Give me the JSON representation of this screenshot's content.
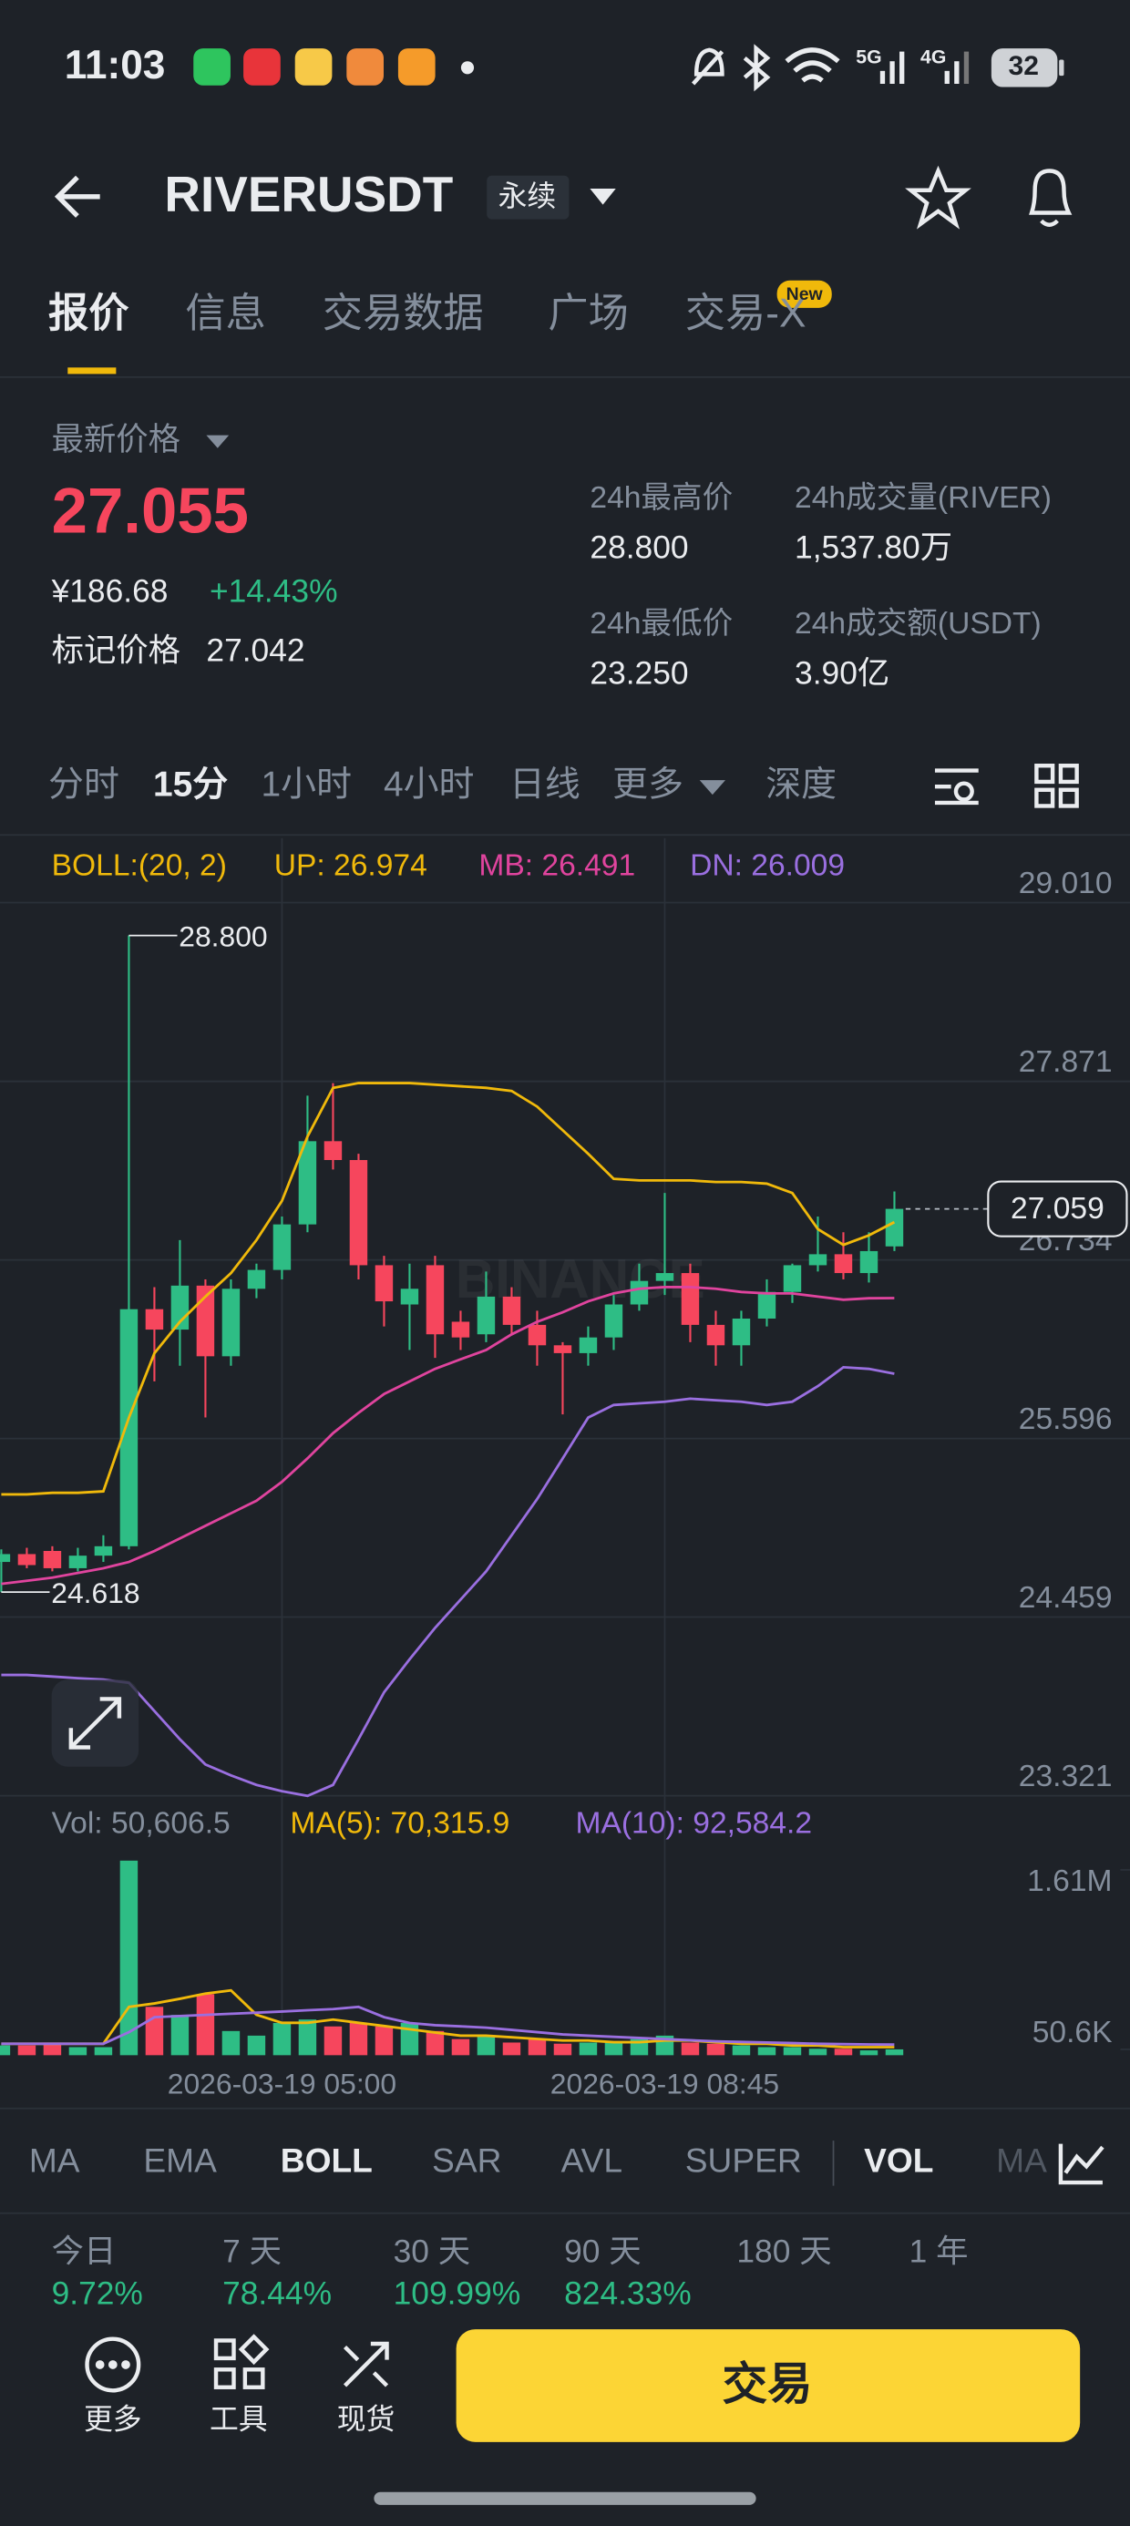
{
  "status_bar": {
    "time": "11:03",
    "network_1": "5G",
    "network_2": "4G",
    "battery": "32"
  },
  "header": {
    "symbol": "RIVERUSDT",
    "contract": "永续"
  },
  "tabs": {
    "items": [
      "报价",
      "信息",
      "交易数据",
      "广场",
      "交易-X"
    ],
    "badge": "New"
  },
  "price_panel": {
    "label": "最新价格",
    "last_price": "27.055",
    "cny": "¥186.68",
    "change": "+14.43%",
    "mark_label": "标记价格",
    "mark_price": "27.042",
    "stats": [
      {
        "label": "24h最高价",
        "value": "28.800"
      },
      {
        "label": "24h成交量(RIVER)",
        "value": "1,537.80万"
      },
      {
        "label": "24h最低价",
        "value": "23.250"
      },
      {
        "label": "24h成交额(USDT)",
        "value": "3.90亿"
      }
    ]
  },
  "intervals": [
    "分时",
    "15分",
    "1小时",
    "4小时",
    "日线",
    "更多",
    "深度"
  ],
  "chart_data": [
    {
      "type": "candlestick",
      "indicator": "BOLL:(20, 2)",
      "watermark": "BINANCE",
      "x": [
        null,
        null,
        null,
        null,
        null,
        null,
        null,
        null,
        null,
        null,
        null,
        "2026-03-19 05:00",
        null,
        null,
        null,
        null,
        null,
        null,
        null,
        null,
        null,
        null,
        null,
        null,
        null,
        null,
        "2026-03-19 08:45",
        null,
        null,
        null,
        null,
        null,
        null,
        null,
        null,
        null
      ],
      "ohlc": [
        [
          24.81,
          24.89,
          24.618,
          24.86
        ],
        [
          24.86,
          24.9,
          24.77,
          24.79
        ],
        [
          24.88,
          24.91,
          24.75,
          24.77
        ],
        [
          24.77,
          24.9,
          24.75,
          24.85
        ],
        [
          24.85,
          24.98,
          24.81,
          24.91
        ],
        [
          24.91,
          28.8,
          24.89,
          26.42
        ],
        [
          26.42,
          26.56,
          25.96,
          26.29
        ],
        [
          26.29,
          26.86,
          26.06,
          26.57
        ],
        [
          26.57,
          26.61,
          25.73,
          26.12
        ],
        [
          26.12,
          26.61,
          26.06,
          26.55
        ],
        [
          26.55,
          26.71,
          26.49,
          26.67
        ],
        [
          26.67,
          27.01,
          26.61,
          26.96
        ],
        [
          26.96,
          27.78,
          26.91,
          27.49
        ],
        [
          27.49,
          27.86,
          27.31,
          27.37
        ],
        [
          27.37,
          27.41,
          26.61,
          26.7
        ],
        [
          26.7,
          26.76,
          26.31,
          26.47
        ],
        [
          26.45,
          26.71,
          26.16,
          26.55
        ],
        [
          26.7,
          26.76,
          26.11,
          26.26
        ],
        [
          26.34,
          26.41,
          26.16,
          26.24
        ],
        [
          26.26,
          26.66,
          26.21,
          26.5
        ],
        [
          26.5,
          26.56,
          26.26,
          26.32
        ],
        [
          26.32,
          26.41,
          26.06,
          26.19
        ],
        [
          26.19,
          26.21,
          25.75,
          26.14
        ],
        [
          26.14,
          26.31,
          26.06,
          26.24
        ],
        [
          26.24,
          26.51,
          26.16,
          26.45
        ],
        [
          26.45,
          26.71,
          26.41,
          26.6
        ],
        [
          26.6,
          27.16,
          26.51,
          26.65
        ],
        [
          26.65,
          26.71,
          26.21,
          26.32
        ],
        [
          26.32,
          26.41,
          26.06,
          26.19
        ],
        [
          26.19,
          26.41,
          26.06,
          26.36
        ],
        [
          26.36,
          26.61,
          26.31,
          26.53
        ],
        [
          26.53,
          26.71,
          26.46,
          26.7
        ],
        [
          26.7,
          27.01,
          26.66,
          26.77
        ],
        [
          26.77,
          26.91,
          26.61,
          26.65
        ],
        [
          26.65,
          26.91,
          26.59,
          26.79
        ],
        [
          26.82,
          27.17,
          26.79,
          27.059
        ]
      ],
      "colors": {
        "up": "#2ebd85",
        "down": "#f6465d"
      },
      "series": [
        {
          "name": "UP",
          "legend_label": "UP: 26.974",
          "color": "#f0b90b",
          "values": [
            25.24,
            25.24,
            25.25,
            25.25,
            25.26,
            25.73,
            26.14,
            26.34,
            26.5,
            26.65,
            26.86,
            27.11,
            27.52,
            27.83,
            27.86,
            27.86,
            27.86,
            27.85,
            27.84,
            27.83,
            27.81,
            27.71,
            27.56,
            27.41,
            27.25,
            27.24,
            27.24,
            27.24,
            27.23,
            27.23,
            27.22,
            27.16,
            26.93,
            26.83,
            26.89,
            26.974
          ]
        },
        {
          "name": "MB",
          "legend_label": "MB: 26.491",
          "color": "#e0449e",
          "values": [
            24.67,
            24.69,
            24.71,
            24.74,
            24.77,
            24.81,
            24.88,
            24.96,
            25.04,
            25.12,
            25.2,
            25.32,
            25.47,
            25.63,
            25.76,
            25.88,
            25.96,
            26.04,
            26.1,
            26.16,
            26.26,
            26.34,
            26.4,
            26.47,
            26.52,
            26.55,
            26.56,
            26.56,
            26.55,
            26.53,
            26.52,
            26.52,
            26.5,
            26.48,
            26.49,
            26.491
          ]
        },
        {
          "name": "DN",
          "legend_label": "DN: 26.009",
          "color": "#9a6fe0",
          "values": [
            24.09,
            24.09,
            24.08,
            24.07,
            24.06,
            24.04,
            23.86,
            23.68,
            23.52,
            23.45,
            23.39,
            23.35,
            23.32,
            23.39,
            23.68,
            23.98,
            24.19,
            24.39,
            24.57,
            24.75,
            24.98,
            25.21,
            25.47,
            25.73,
            25.81,
            25.82,
            25.83,
            25.85,
            25.84,
            25.83,
            25.81,
            25.83,
            25.93,
            26.05,
            26.04,
            26.009
          ]
        }
      ],
      "ylim": [
        23.28,
        29.42
      ],
      "yticks": [
        23.321,
        24.459,
        25.596,
        26.734,
        27.871,
        {
          "value": 29.01,
          "label": "29.010"
        }
      ],
      "grid": true,
      "high_label": "28.800",
      "low_label": "24.618",
      "last_label": "27.059"
    },
    {
      "type": "bar",
      "title": "Vol: 50,606.5",
      "values": [
        85000,
        85000,
        110000,
        70000,
        70000,
        1690000,
        420000,
        350000,
        530000,
        210000,
        170000,
        280000,
        310000,
        250000,
        280000,
        250000,
        280000,
        210000,
        140000,
        170000,
        110000,
        140000,
        100000,
        110000,
        110000,
        140000,
        170000,
        110000,
        100000,
        85000,
        70000,
        70000,
        56000,
        56000,
        42000,
        50606.5
      ],
      "series": [
        {
          "name": "MA(5)",
          "legend_label": "MA(5): 70,315.9",
          "color": "#f0b90b",
          "values": [
            99000,
            99000,
            99000,
            99000,
            99000,
            420000,
            450000,
            490000,
            535000,
            563000,
            352000,
            282000,
            282000,
            310000,
            282000,
            253000,
            225000,
            197000,
            169000,
            169000,
            155000,
            141000,
            127000,
            127000,
            113000,
            113000,
            127000,
            127000,
            113000,
            99000,
            99000,
            84000,
            84000,
            70000,
            70000,
            70315.9
          ]
        },
        {
          "name": "MA(10)",
          "legend_label": "MA(10): 92,584.2",
          "color": "#9a6fe0",
          "values": [
            99000,
            99000,
            99000,
            99000,
            99000,
            200000,
            330000,
            340000,
            350000,
            360000,
            370000,
            380000,
            390000,
            400000,
            420000,
            330000,
            280000,
            260000,
            250000,
            240000,
            220000,
            200000,
            180000,
            170000,
            160000,
            150000,
            140000,
            130000,
            120000,
            115000,
            110000,
            105000,
            100000,
            96000,
            94000,
            92584.2
          ]
        }
      ],
      "ylim": [
        0,
        1750000
      ],
      "yticks": [
        {
          "value": 50600,
          "label": "50.6K"
        },
        {
          "value": 1610000,
          "label": "1.61M"
        }
      ]
    }
  ],
  "indicators": [
    "MA",
    "EMA",
    "BOLL",
    "SAR",
    "AVL",
    "SUPER",
    "VOL",
    "MA"
  ],
  "performance": [
    {
      "period": "今日",
      "value": "9.72%"
    },
    {
      "period": "7 天",
      "value": "78.44%"
    },
    {
      "period": "30 天",
      "value": "109.99%"
    },
    {
      "period": "90 天",
      "value": "824.33%"
    },
    {
      "period": "180 天"
    },
    {
      "period": "1 年"
    }
  ],
  "bottom_bar": {
    "more": "更多",
    "tools": "工具",
    "spot": "现货",
    "trade": "交易"
  }
}
